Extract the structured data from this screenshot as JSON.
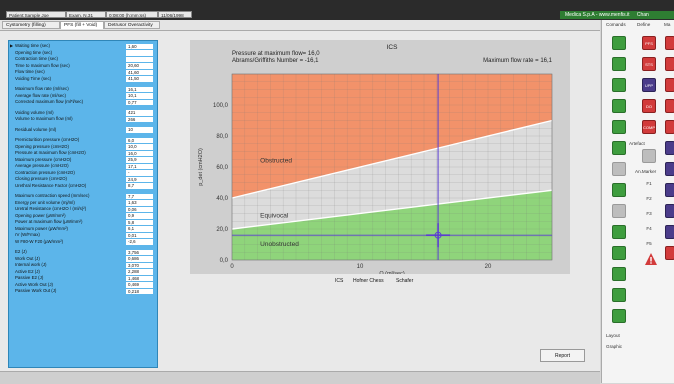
{
  "header": {
    "patient": "Patient:Sample Joe",
    "exam": "Exam. N.31",
    "time": "0:08:00 (h:mm:ss)",
    "date": "11/06/1998",
    "brand": "Medica S.p.A - www.menfis.it",
    "brand_tail": "Chan"
  },
  "tabs": [
    {
      "label": "Cystometry (filling)"
    },
    {
      "label": "PFS (fill + Void)"
    },
    {
      "label": "Detrusor Overactivity"
    }
  ],
  "params": [
    {
      "label": "Waiting time (sec)",
      "value": "1,60"
    },
    {
      "label": "Opening time (sec)",
      "value": ""
    },
    {
      "label": "Contraction time (sec)",
      "value": ""
    },
    {
      "label": "Time to maximum flow (sec)",
      "value": "20,60"
    },
    {
      "label": "Flow time (sec)",
      "value": "41,60"
    },
    {
      "label": "Voiding Time (sec)",
      "value": "41,50"
    },
    {
      "label": "Maximum flow rate (ml/sec)",
      "value": "16,1"
    },
    {
      "label": "Average flow rate (ml/sec)",
      "value": "10,1"
    },
    {
      "label": "Corrected maximum flow (ml*l/sec)",
      "value": "0,77"
    },
    {
      "label": "Voiding volume (ml)",
      "value": "421"
    },
    {
      "label": "Volume to maximum flow (ml)",
      "value": "266"
    },
    {
      "label": "Residual volume (ml)",
      "value": "10"
    },
    {
      "label": "Premicturition pressure (cmH2O)",
      "value": "6,0"
    },
    {
      "label": "Opening pressure (cmH2O)",
      "value": "10,0"
    },
    {
      "label": "Pressure at maximum flow (cmH2O)",
      "value": "16,0"
    },
    {
      "label": "Maximum pressure (cmH2O)",
      "value": "25,9"
    },
    {
      "label": "Average pressure (cmH2O)",
      "value": "17,1"
    },
    {
      "label": "Contraction pressure (cmH2O)",
      "value": "-"
    },
    {
      "label": "Closing pressure (cmH2O)",
      "value": "24,9"
    },
    {
      "label": "Urethral Resistance Factor (cmH2O)",
      "value": "8,7"
    },
    {
      "label": "Maximum contraction speed (mm/sec)",
      "value": "7,7"
    },
    {
      "label": "Energy per unit volume (mj/ml)",
      "value": "1,63"
    },
    {
      "label": "Uretral Resistance (cmH2O / (ml/s)²)",
      "value": "0,06"
    },
    {
      "label": "Opening power (µW/mm²)",
      "value": "0,9"
    },
    {
      "label": "Power at maximum flow (µW/mm²)",
      "value": "5,8"
    },
    {
      "label": "Maximum power (µW/mm²)",
      "value": "6,1"
    },
    {
      "label": "rV (W/Fmax)",
      "value": "0,01"
    },
    {
      "label": "W F80-W F20 (µW/mm²)",
      "value": "-2,6"
    },
    {
      "label": "E2 (J)",
      "value": "3,756"
    },
    {
      "label": "Work Out (J)",
      "value": "0,686"
    },
    {
      "label": "Internal work (J)",
      "value": "3,070"
    },
    {
      "label": "Active E2 (J)",
      "value": "2,288"
    },
    {
      "label": "Passive E2 (J)",
      "value": "1,468"
    },
    {
      "label": "Active Work Out (J)",
      "value": "0,469"
    },
    {
      "label": "Passive Work Out (J)",
      "value": "0,218"
    }
  ],
  "chart_data": {
    "type": "line",
    "title": "ICS",
    "annotation_1": "Pressure at maximum flow= 16,0",
    "annotation_2": "Abrams/Griffiths Number = -16,1",
    "annotation_3": "Maximum flow rate = 16,1",
    "xlabel": "Q (ml/sec)",
    "ylabel": "p_det (cmH2O)",
    "xlim": [
      0,
      25
    ],
    "ylim": [
      0,
      120
    ],
    "xticks": [
      "0",
      "10",
      "20"
    ],
    "yticks": [
      "0,0",
      "20,0",
      "40,0",
      "60,0",
      "80,0",
      "100,0"
    ],
    "regions": [
      {
        "name": "Obstructed",
        "color": "#f2926a"
      },
      {
        "name": "Equivocal",
        "color": "#dcdcdc"
      },
      {
        "name": "Unobstructed",
        "color": "#8fd47b"
      }
    ],
    "boundaries": [
      {
        "name": "upper",
        "x": [
          0,
          25
        ],
        "y": [
          40,
          90
        ]
      },
      {
        "name": "lower",
        "x": [
          0,
          25
        ],
        "y": [
          20,
          45
        ]
      }
    ],
    "marker": {
      "x": 16.1,
      "y": 16.0
    },
    "grid": true
  },
  "modes": [
    "ICS",
    "Hofner Chess",
    "Schafer"
  ],
  "report_label": "Report",
  "right_panel": {
    "headers": [
      "Comands",
      "Define",
      "Ma"
    ],
    "artefact": "Artefact",
    "an_marker": "An.Marker",
    "f_keys": [
      "F1",
      "F2",
      "F3",
      "F4",
      "F5"
    ],
    "layout": "Layout",
    "graphic": "Graphic"
  }
}
